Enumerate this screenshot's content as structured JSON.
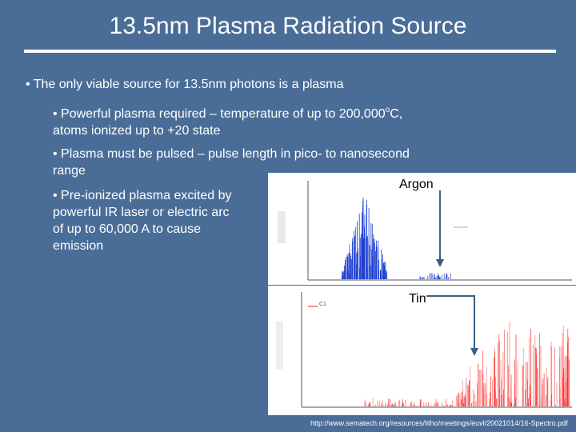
{
  "slide": {
    "title": "13.5nm Plasma Radiation Source",
    "bullet1": "• The only viable source for 13.5nm photons is a plasma",
    "bullet2_pre": "• Powerful plasma required – temperature of up to 200,000",
    "bullet2_sup": "o",
    "bullet2_post": "C,",
    "bullet2_line2": "atoms ionized up to +20 state",
    "bullet3_line1": "• Plasma must be pulsed – pulse length in pico- to nanosecond",
    "bullet3_line2": "range",
    "bullet4_line1": "• Pre-ionized plasma excited by",
    "bullet4_line2": "powerful IR laser or electric arc",
    "bullet4_line3": "of up to 60,000 A to cause",
    "bullet4_line4": "emission"
  },
  "figures": {
    "argon_label": "Argon",
    "tin_label": "Tin",
    "tin_legend": "C1",
    "argon_color": "#1f3fd0",
    "tin_color": "#ff1a1a",
    "arrow_color": "#3a5f87"
  },
  "footer": {
    "url": "http://www.sematech.org/resources/litho/meetings/euvl/20021014/16-Spectro.pdf"
  }
}
